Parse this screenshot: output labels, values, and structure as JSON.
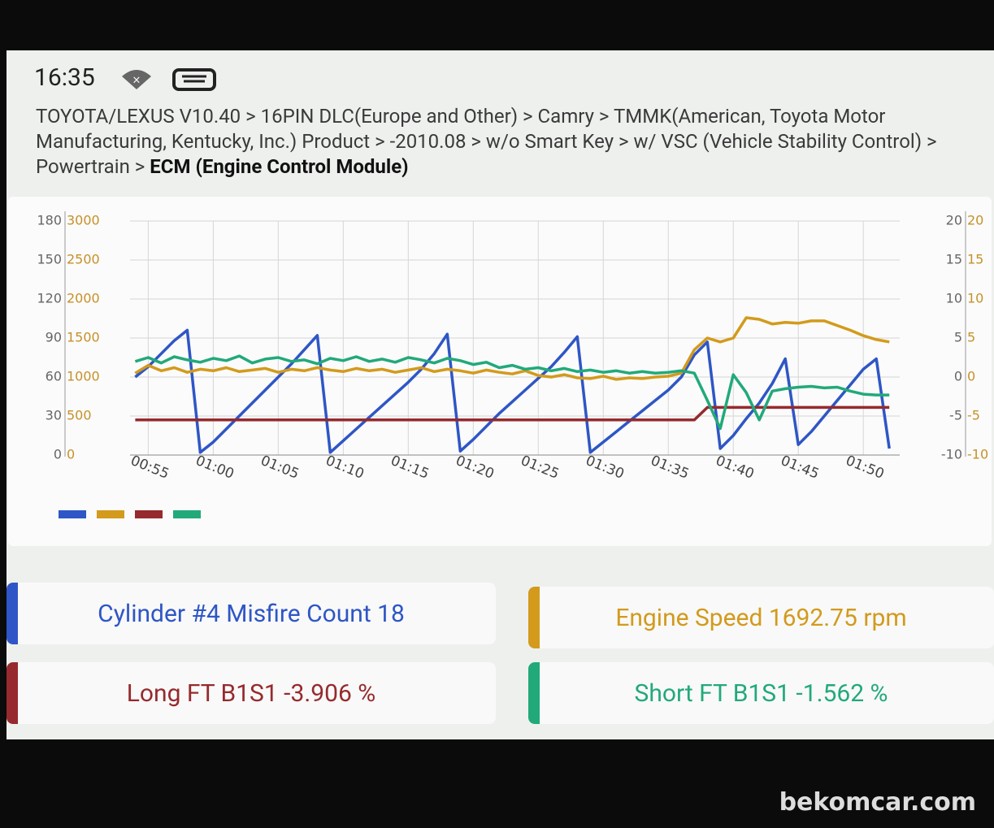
{
  "status_bar": {
    "time": "16:35"
  },
  "breadcrumb": {
    "path": "TOYOTA/LEXUS V10.40 > 16PIN DLC(Europe and Other) > Camry > TMMK(American, Toyota Motor Manufacturing, Kentucky, Inc.) Product > -2010.08 > w/o Smart Key > w/ VSC (Vehicle Stability Control) > Powertrain > ",
    "current": "ECM (Engine Control Module)"
  },
  "chart_data": {
    "type": "line",
    "grid": true,
    "x": [
      54,
      55,
      56,
      57,
      58,
      59,
      60,
      61,
      62,
      63,
      64,
      65,
      66,
      67,
      68,
      69,
      70,
      71,
      72,
      73,
      74,
      75,
      76,
      77,
      78,
      79,
      80,
      81,
      82,
      83,
      84,
      85,
      86,
      87,
      88,
      89,
      90,
      91,
      92,
      93,
      94,
      95,
      96,
      97,
      98,
      99,
      100,
      101,
      102,
      103,
      104,
      105,
      106,
      107,
      108,
      109,
      110,
      111,
      112
    ],
    "xlim": [
      53.6,
      112.8
    ],
    "xticks": [
      {
        "value": 55,
        "label": "00:55"
      },
      {
        "value": 60,
        "label": "01:00"
      },
      {
        "value": 65,
        "label": "01:05"
      },
      {
        "value": 70,
        "label": "01:10"
      },
      {
        "value": 75,
        "label": "01:15"
      },
      {
        "value": 80,
        "label": "01:20"
      },
      {
        "value": 85,
        "label": "01:25"
      },
      {
        "value": 90,
        "label": "01:30"
      },
      {
        "value": 95,
        "label": "01:35"
      },
      {
        "value": 100,
        "label": "01:40"
      },
      {
        "value": 105,
        "label": "01:45"
      },
      {
        "value": 110,
        "label": "01:50"
      }
    ],
    "ylim": [
      0,
      180
    ],
    "yticks": [
      0,
      30,
      60,
      90,
      120,
      150,
      180
    ],
    "y2lim": [
      0,
      3000
    ],
    "y2ticks": [
      0,
      500,
      1000,
      1500,
      2000,
      2500,
      3000
    ],
    "y3lim": [
      -10,
      20
    ],
    "y3ticks": [
      -10,
      -5,
      0,
      5,
      10,
      15,
      20
    ],
    "y4lim": [
      -10,
      20
    ],
    "y4ticks": [
      -10,
      -5,
      0,
      5,
      10,
      15,
      20
    ],
    "series": [
      {
        "color": "#2f56c6",
        "axis": "y",
        "values": [
          60,
          68,
          78,
          88,
          96,
          2,
          10,
          20,
          30,
          40,
          50,
          60,
          70,
          81,
          92,
          2,
          11,
          20,
          29,
          38,
          47,
          56,
          66,
          78,
          93,
          3,
          12,
          22,
          32,
          41,
          50,
          59,
          68,
          79,
          91,
          2,
          10,
          18,
          26,
          34,
          42,
          50,
          60,
          77,
          87,
          5,
          15,
          28,
          40,
          55,
          74,
          8,
          18,
          30,
          42,
          54,
          66,
          74,
          5
        ]
      },
      {
        "color": "#d39a1c",
        "axis": "y2",
        "values": [
          1050,
          1150,
          1080,
          1120,
          1060,
          1100,
          1080,
          1120,
          1070,
          1090,
          1110,
          1060,
          1100,
          1080,
          1120,
          1090,
          1070,
          1110,
          1080,
          1100,
          1060,
          1090,
          1120,
          1070,
          1100,
          1080,
          1050,
          1090,
          1060,
          1040,
          1080,
          1020,
          1000,
          1030,
          990,
          980,
          1010,
          970,
          990,
          980,
          1000,
          1010,
          1050,
          1350,
          1500,
          1450,
          1500,
          1760,
          1740,
          1680,
          1700,
          1690,
          1720,
          1720,
          1660,
          1600,
          1530,
          1480,
          1450
        ]
      },
      {
        "color": "#962a2e",
        "axis": "y3",
        "values": [
          -5.5,
          -5.5,
          -5.5,
          -5.5,
          -5.5,
          -5.5,
          -5.5,
          -5.5,
          -5.5,
          -5.5,
          -5.5,
          -5.5,
          -5.5,
          -5.5,
          -5.5,
          -5.5,
          -5.5,
          -5.5,
          -5.5,
          -5.5,
          -5.5,
          -5.5,
          -5.5,
          -5.5,
          -5.5,
          -5.5,
          -5.5,
          -5.5,
          -5.5,
          -5.5,
          -5.5,
          -5.5,
          -5.5,
          -5.5,
          -5.5,
          -5.5,
          -5.5,
          -5.5,
          -5.5,
          -5.5,
          -5.5,
          -5.5,
          -5.5,
          -5.5,
          -3.9,
          -3.9,
          -3.9,
          -3.9,
          -3.9,
          -3.9,
          -3.9,
          -3.9,
          -3.9,
          -3.9,
          -3.9,
          -3.9,
          -3.9,
          -3.9,
          -3.9
        ]
      },
      {
        "color": "#22a97a",
        "axis": "y4",
        "values": [
          2.0,
          2.5,
          1.8,
          2.6,
          2.2,
          1.9,
          2.4,
          2.1,
          2.7,
          1.8,
          2.3,
          2.5,
          2.0,
          2.2,
          1.7,
          2.4,
          2.1,
          2.6,
          2.0,
          2.3,
          1.9,
          2.5,
          2.2,
          1.8,
          2.4,
          2.1,
          1.6,
          1.9,
          1.2,
          1.5,
          1.0,
          1.2,
          0.8,
          1.1,
          0.7,
          0.9,
          0.6,
          0.8,
          0.5,
          0.7,
          0.5,
          0.6,
          0.8,
          0.5,
          -3.0,
          -6.6,
          0.3,
          -2.0,
          -5.5,
          -1.8,
          -1.5,
          -1.3,
          -1.2,
          -1.4,
          -1.3,
          -1.8,
          -2.2,
          -2.3,
          -2.3
        ]
      }
    ]
  },
  "cards": [
    {
      "label": "Cylinder #4 Misfire Count 18",
      "color": "#2f56c6"
    },
    {
      "label": "Engine Speed 1692.75 rpm",
      "color": "#d39a1c"
    },
    {
      "label": "Long FT B1S1 -3.906 %",
      "color": "#962a2e"
    },
    {
      "label": "Short FT B1S1 -1.562 %",
      "color": "#22a97a"
    }
  ],
  "watermark": "bekomcar.com"
}
